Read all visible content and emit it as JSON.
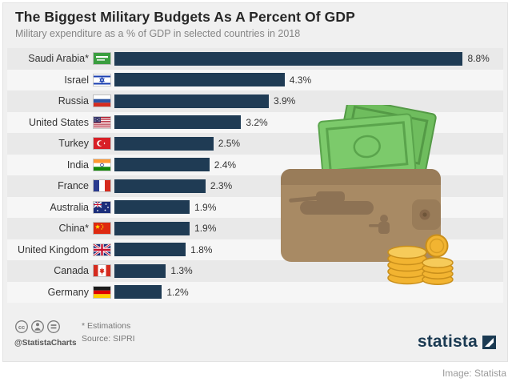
{
  "caption": "Image: Statista",
  "footer": {
    "credit": "@StatistaCharts",
    "note": "* Estimations",
    "source": "Source: SIPRI",
    "logo_text": "statista",
    "license_icons": [
      "cc",
      "by",
      "nd"
    ]
  },
  "chart_data": {
    "type": "bar",
    "orientation": "horizontal",
    "title": "The Biggest Military Budgets As A Percent Of GDP",
    "subtitle": "Military expenditure as a % of GDP in selected countries in 2018",
    "unit": "% of GDP",
    "categories": [
      "Saudi Arabia*",
      "Israel",
      "Russia",
      "United States",
      "Turkey",
      "India",
      "France",
      "Australia",
      "China*",
      "United Kingdom",
      "Canada",
      "Germany"
    ],
    "values": [
      8.8,
      4.3,
      3.9,
      3.2,
      2.5,
      2.4,
      2.3,
      1.9,
      1.9,
      1.8,
      1.3,
      1.2
    ],
    "value_labels": [
      "8.8%",
      "4.3%",
      "3.9%",
      "3.2%",
      "2.5%",
      "2.4%",
      "2.3%",
      "1.9%",
      "1.9%",
      "1.8%",
      "1.3%",
      "1.2%"
    ],
    "flags": [
      "sa",
      "il",
      "ru",
      "us",
      "tr",
      "in",
      "fr",
      "au",
      "cn",
      "gb",
      "ca",
      "de"
    ],
    "xlim": [
      0,
      9.7
    ],
    "bar_color": "#1f3b54",
    "grid": false,
    "legend": false
  }
}
